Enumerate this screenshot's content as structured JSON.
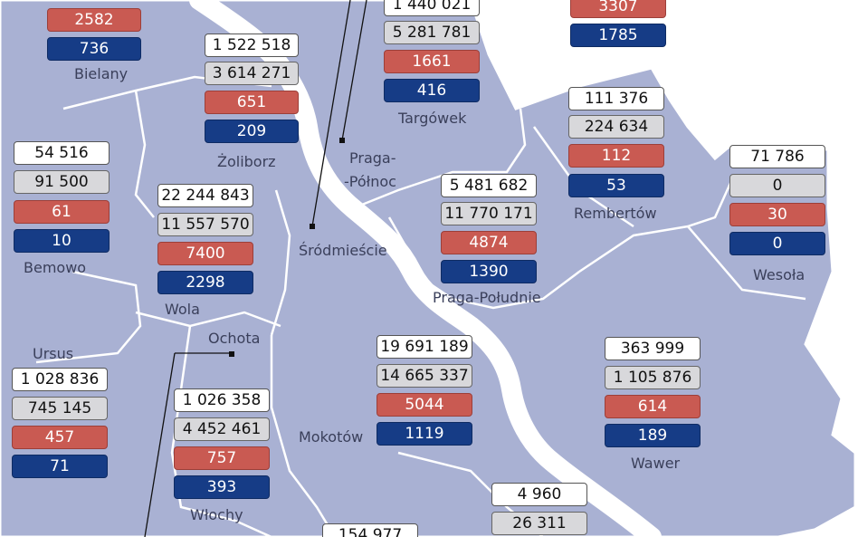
{
  "colors": {
    "background": "#ffffff",
    "land": "#a9b1d3",
    "river": "#ffffff",
    "border": "#ffffff",
    "row1_box": "#ffffff",
    "row2_box": "#d8d8db",
    "row3_box": "#c95a52",
    "row4_box": "#163c86"
  },
  "districts": {
    "bielany": {
      "label": "Bielany",
      "values": [
        "2582",
        "736"
      ]
    },
    "zoliborz": {
      "label": "Żoliborz",
      "values": [
        "1 522 518",
        "3 614 271",
        "651",
        "209"
      ]
    },
    "targowek": {
      "label": "Targówek",
      "values": [
        "1 440 021",
        "5 281 781",
        "1661",
        "416"
      ]
    },
    "top_right": {
      "label": "",
      "values": [
        "3307",
        "1785"
      ]
    },
    "rembertow": {
      "label": "Rembertów",
      "values": [
        "111 376",
        "224 634",
        "112",
        "53"
      ]
    },
    "bemowo": {
      "label": "Bemowo",
      "values": [
        "54 516",
        "91 500",
        "61",
        "10"
      ]
    },
    "wola": {
      "label": "Wola",
      "values": [
        "22 244 843",
        "11 557 570",
        "7400",
        "2298"
      ]
    },
    "praga_polnoc": {
      "label_line1": "Praga-",
      "label_line2": "-Północ"
    },
    "srodmiescie": {
      "label": "Śródmieście"
    },
    "praga_poludnie": {
      "label": "Praga-Południe",
      "values": [
        "5 481 682",
        "11 770 171",
        "4874",
        "1390"
      ]
    },
    "wesola": {
      "label": "Wesoła",
      "values": [
        "71 786",
        "0",
        "30",
        "0"
      ]
    },
    "ursus": {
      "label": "Ursus",
      "values": [
        "1 028 836",
        "745 145",
        "457",
        "71"
      ]
    },
    "ochota": {
      "label": "Ochota"
    },
    "wlochy": {
      "label": "Włochy",
      "values": [
        "1 026 358",
        "4 452 461",
        "757",
        "393"
      ]
    },
    "mokotow": {
      "label": "Mokotów",
      "values": [
        "19 691 189",
        "14 665 337",
        "5044",
        "1119"
      ]
    },
    "wawer": {
      "label": "Wawer",
      "values": [
        "363 999",
        "1 105 876",
        "614",
        "189"
      ]
    },
    "wilanow": {
      "values": [
        "4 960",
        "26 311"
      ]
    },
    "ursynow": {
      "values": [
        "154 977"
      ]
    }
  }
}
